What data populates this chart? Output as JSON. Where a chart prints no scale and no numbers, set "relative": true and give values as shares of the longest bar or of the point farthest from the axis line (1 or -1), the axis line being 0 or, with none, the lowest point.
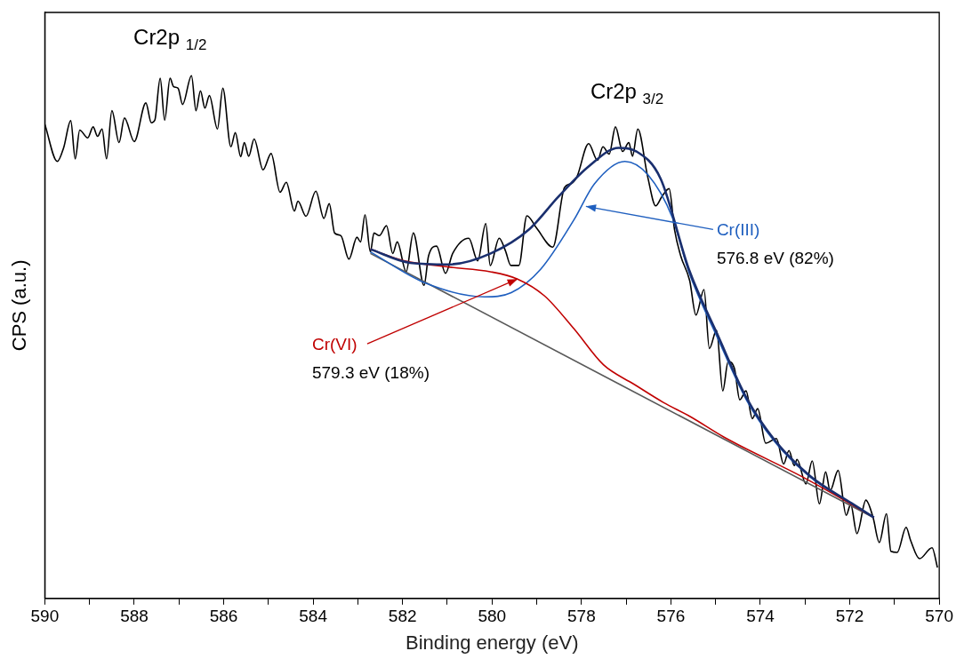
{
  "chart_data": {
    "type": "line",
    "xlabel": "Binding energy (eV)",
    "ylabel": "CPS (a.u.)",
    "relative": true,
    "grid": false,
    "legend": false,
    "marker": "none",
    "line_style": "solid",
    "xlim": [
      590,
      570
    ],
    "xticks": [
      590,
      {
        "value": 589,
        "label": null
      },
      588,
      {
        "value": 587,
        "label": null
      },
      586,
      {
        "value": 585,
        "label": null
      },
      584,
      {
        "value": 583,
        "label": null
      },
      582,
      {
        "value": 581,
        "label": null
      },
      580,
      {
        "value": 579,
        "label": null
      },
      578,
      {
        "value": 577,
        "label": null
      },
      576,
      {
        "value": 575,
        "label": null
      },
      574,
      {
        "value": 573,
        "label": null
      },
      572,
      {
        "value": 571,
        "label": null
      },
      570
    ],
    "series": [
      {
        "color": "#000000",
        "x": [
          590.0,
          589.72,
          589.58,
          589.42,
          589.32,
          589.22,
          589.04,
          588.92,
          588.82,
          588.72,
          588.62,
          588.5,
          588.34,
          588.22,
          588.0,
          587.74,
          587.62,
          587.54,
          587.42,
          587.32,
          587.2,
          587.12,
          587.02,
          586.92,
          586.72,
          586.62,
          586.52,
          586.42,
          586.32,
          586.14,
          586.02,
          585.84,
          585.74,
          585.62,
          585.54,
          585.44,
          585.32,
          585.12,
          584.94,
          584.74,
          584.6,
          584.42,
          584.34,
          584.16,
          583.94,
          583.76,
          583.64,
          583.52,
          583.38,
          583.2,
          583.02,
          582.94,
          582.84,
          582.72,
          582.64,
          582.52,
          582.36,
          582.22,
          582.12,
          581.92,
          581.76,
          581.52,
          581.42,
          581.24,
          581.04,
          580.88,
          580.52,
          580.32,
          580.14,
          580.04,
          579.84,
          579.7,
          579.58,
          579.4,
          579.22,
          579.0,
          578.64,
          578.38,
          578.22,
          578.1,
          577.84,
          577.64,
          577.52,
          577.38,
          577.24,
          577.08,
          576.94,
          576.86,
          576.74,
          576.52,
          576.34,
          576.2,
          576.04,
          575.92,
          575.78,
          575.58,
          575.44,
          575.26,
          575.14,
          574.98,
          574.84,
          574.72,
          574.58,
          574.46,
          574.32,
          574.18,
          574.06,
          573.88,
          573.64,
          573.48,
          573.36,
          573.24,
          573.18,
          572.98,
          572.84,
          572.68,
          572.54,
          572.44,
          572.26,
          572.08,
          571.98,
          571.84,
          571.64,
          571.48,
          571.34,
          571.18,
          571.08,
          570.94,
          570.74,
          570.64,
          570.44,
          570.16,
          570.04
        ],
        "values": [
          0.907,
          0.836,
          0.862,
          0.914,
          0.841,
          0.896,
          0.881,
          0.902,
          0.884,
          0.898,
          0.841,
          0.933,
          0.872,
          0.919,
          0.874,
          0.948,
          0.91,
          0.915,
          0.995,
          0.915,
          0.995,
          0.979,
          0.976,
          0.945,
          1,
          0.933,
          0.971,
          0.938,
          0.962,
          0.898,
          0.976,
          0.864,
          0.891,
          0.845,
          0.872,
          0.846,
          0.879,
          0.82,
          0.851,
          0.777,
          0.796,
          0.741,
          0.76,
          0.731,
          0.779,
          0.727,
          0.755,
          0.699,
          0.694,
          0.649,
          0.691,
          0.682,
          0.734,
          0.663,
          0.699,
          0.694,
          0.713,
          0.66,
          0.682,
          0.625,
          0.699,
          0.599,
          0.655,
          0.674,
          0.622,
          0.66,
          0.689,
          0.646,
          0.717,
          0.637,
          0.689,
          0.665,
          0.637,
          0.637,
          0.732,
          0.708,
          0.672,
          0.786,
          0.794,
          0.807,
          0.87,
          0.838,
          0.864,
          0.85,
          0.902,
          0.855,
          0.872,
          0.846,
          0.898,
          0.807,
          0.751,
          0.769,
          0.784,
          0.706,
          0.655,
          0.608,
          0.542,
          0.591,
          0.478,
          0.513,
          0.397,
          0.453,
          0.44,
          0.38,
          0.397,
          0.344,
          0.363,
          0.297,
          0.306,
          0.257,
          0.283,
          0.254,
          0.266,
          0.219,
          0.263,
          0.181,
          0.242,
          0.206,
          0.245,
          0.159,
          0.18,
          0.124,
          0.188,
          0.155,
          0.107,
          0.162,
          0.09,
          0.088,
          0.136,
          0.111,
          0.076,
          0.097,
          0.059
        ]
      },
      {
        "color": "#595959",
        "x": [
          582.72,
          571.48
        ],
        "values": [
          0.66,
          0.155
        ]
      },
      {
        "color": "#1f5fbf",
        "x": [
          582.72,
          581.51,
          580.17,
          579.57,
          578.91,
          578.17,
          577.71,
          577.03,
          576.51,
          575.97,
          575.6,
          574.96,
          574.3,
          573.7,
          572.9,
          571.96,
          571.46
        ],
        "values": [
          0.663,
          0.604,
          0.577,
          0.585,
          0.63,
          0.724,
          0.793,
          0.836,
          0.81,
          0.729,
          0.625,
          0.499,
          0.378,
          0.302,
          0.233,
          0.181,
          0.155
        ]
      },
      {
        "color": "#c00000",
        "x": [
          582.72,
          581.97,
          580.97,
          580.04,
          579.43,
          578.83,
          578.17,
          577.51,
          576.83,
          576.17,
          575.57,
          574.82,
          572.96,
          571.46
        ],
        "values": [
          0.668,
          0.646,
          0.634,
          0.625,
          0.611,
          0.579,
          0.516,
          0.447,
          0.41,
          0.375,
          0.348,
          0.309,
          0.228,
          0.155
        ]
      },
      {
        "color": "#1a2f6e",
        "x": [
          582.72,
          581.83,
          580.97,
          580.03,
          579.17,
          578.51,
          577.83,
          577.17,
          576.77,
          576.23,
          575.6,
          574.96,
          574.3,
          573.7,
          572.9,
          571.96,
          571.46
        ],
        "values": [
          0.668,
          0.642,
          0.639,
          0.66,
          0.706,
          0.769,
          0.827,
          0.862,
          0.855,
          0.803,
          0.63,
          0.505,
          0.382,
          0.305,
          0.235,
          0.182,
          0.155
        ]
      }
    ],
    "annotations": [
      {
        "text": "Cr2p $_{1/2}$",
        "x": 587.2,
        "y": 0.995
      },
      {
        "text": "Cr2p $_{3/2}$",
        "x": 577.24,
        "y": 0.902
      },
      {
        "text": "Cr(III)\n576.8 eV (82%)",
        "x": 577.9,
        "y": 0.75
      },
      {
        "text": "Cr(VI)\n579.3 eV (18%)",
        "x": 579.43,
        "y": 0.611
      }
    ]
  }
}
